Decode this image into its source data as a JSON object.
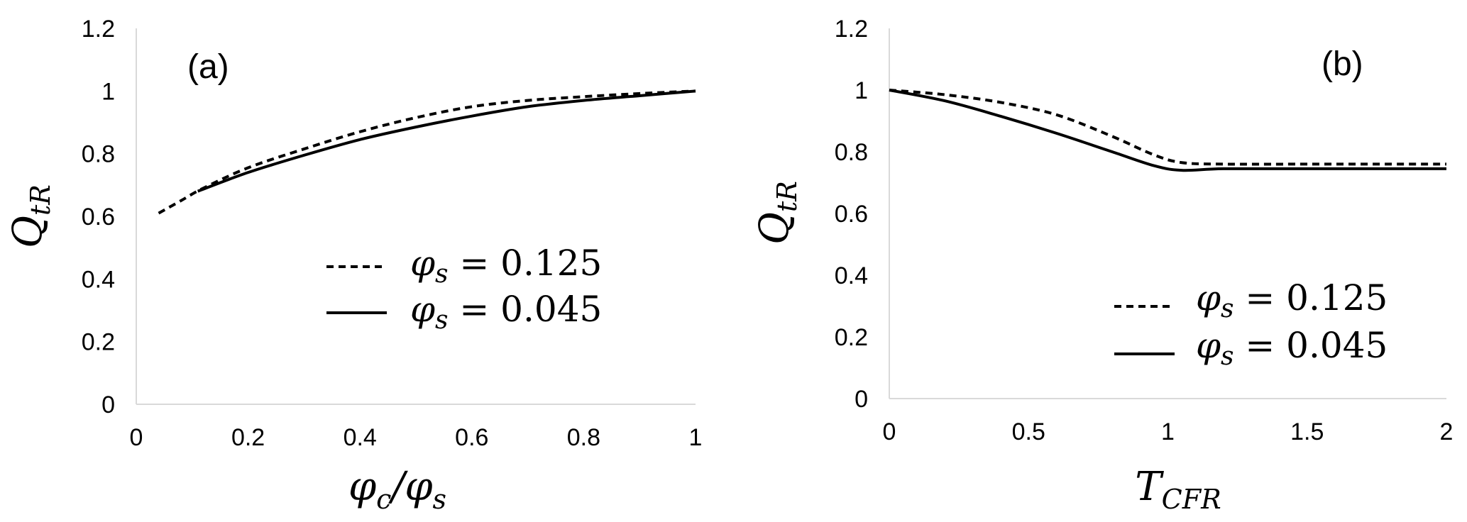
{
  "chart_data": [
    {
      "type": "line",
      "panel_label": "(a)",
      "xlabel": "φc/φs",
      "ylabel": "QtR",
      "xlim": [
        0,
        1
      ],
      "ylim": [
        0,
        1.2
      ],
      "xticks": [
        0,
        0.2,
        0.4,
        0.6,
        0.8,
        1
      ],
      "yticks": [
        0,
        0.2,
        0.4,
        0.6,
        0.8,
        1,
        1.2
      ],
      "xtick_labels": [
        "0",
        "0.2",
        "0.4",
        "0.6",
        "0.8",
        "1"
      ],
      "ytick_labels": [
        "0",
        "0.2",
        "0.4",
        "0.6",
        "0.8",
        "1",
        "1.2"
      ],
      "grid": false,
      "legend_position": "center-right",
      "series": [
        {
          "name": "φs = 0.125",
          "style": "dashed",
          "x": [
            0.04,
            0.08,
            0.12,
            0.2,
            0.3,
            0.4,
            0.5,
            0.6,
            0.7,
            0.8,
            0.9,
            1.0
          ],
          "y": [
            0.61,
            0.65,
            0.69,
            0.755,
            0.815,
            0.87,
            0.915,
            0.95,
            0.97,
            0.982,
            0.992,
            1.0
          ]
        },
        {
          "name": "φs = 0.045",
          "style": "solid",
          "x": [
            0.11,
            0.2,
            0.3,
            0.4,
            0.5,
            0.6,
            0.7,
            0.8,
            0.9,
            1.0
          ],
          "y": [
            0.68,
            0.74,
            0.795,
            0.845,
            0.885,
            0.92,
            0.95,
            0.97,
            0.985,
            1.0
          ]
        }
      ]
    },
    {
      "type": "line",
      "panel_label": "(b)",
      "xlabel": "TCFR",
      "ylabel": "QtR",
      "xlim": [
        0,
        2
      ],
      "ylim": [
        0,
        1.2
      ],
      "xticks": [
        0,
        0.5,
        1,
        1.5,
        2
      ],
      "yticks": [
        0,
        0.2,
        0.4,
        0.6,
        0.8,
        1,
        1.2
      ],
      "xtick_labels": [
        "0",
        "0.5",
        "1",
        "1.5",
        "2"
      ],
      "ytick_labels": [
        "0",
        "0.2",
        "0.4",
        "0.6",
        "0.8",
        "1",
        "1.2"
      ],
      "grid": false,
      "legend_position": "bottom-right",
      "series": [
        {
          "name": "φs = 0.125",
          "style": "dashed",
          "x": [
            0,
            0.2,
            0.4,
            0.6,
            0.8,
            0.95,
            1.05,
            1.2,
            1.5,
            2.0
          ],
          "y": [
            1.0,
            0.985,
            0.96,
            0.92,
            0.85,
            0.79,
            0.765,
            0.76,
            0.76,
            0.76
          ]
        },
        {
          "name": "φs = 0.045",
          "style": "solid",
          "x": [
            0,
            0.2,
            0.4,
            0.6,
            0.8,
            0.95,
            1.05,
            1.2,
            1.5,
            2.0
          ],
          "y": [
            1.0,
            0.965,
            0.915,
            0.86,
            0.8,
            0.755,
            0.74,
            0.745,
            0.745,
            0.745
          ]
        }
      ]
    }
  ]
}
